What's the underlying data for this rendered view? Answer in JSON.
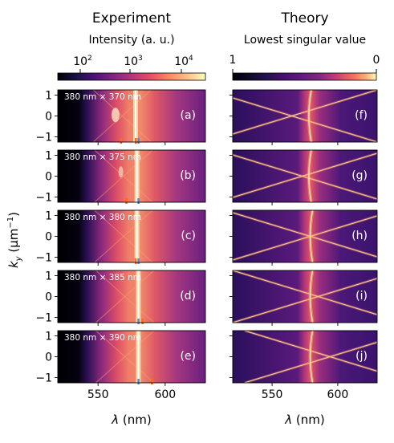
{
  "columns": [
    {
      "title": "Experiment",
      "colorbar_label": "Intensity (a. u.)",
      "colorbar_ticks": [
        "10",
        "10",
        "10"
      ],
      "colorbar_tick_exponents": [
        "2",
        "3",
        "4"
      ],
      "colorbar_colormap": "magma",
      "colorbar_scale": "log"
    },
    {
      "title": "Theory",
      "colorbar_label": "Lowest singular value",
      "colorbar_ticks": [
        "1",
        "0"
      ],
      "colorbar_colormap": "magma-reversed",
      "colorbar_scale": "linear"
    }
  ],
  "y_axis_label": {
    "symbol": "k",
    "subscript": "y",
    "unit_open": " (μm",
    "unit_exponent": "−1",
    "unit_close": ")"
  },
  "x_axis_label": {
    "symbol": "λ",
    "unit": " (nm)"
  },
  "y_ticks": [
    "1",
    "0",
    "−1"
  ],
  "x_ticks": [
    "550",
    "600"
  ],
  "experiment_panels": [
    {
      "letter": "(a)",
      "size_label": "380 nm × 370 nm"
    },
    {
      "letter": "(b)",
      "size_label": "380 nm × 375 nm"
    },
    {
      "letter": "(c)",
      "size_label": "380 nm × 380 nm"
    },
    {
      "letter": "(d)",
      "size_label": "380 nm × 385 nm"
    },
    {
      "letter": "(e)",
      "size_label": "380 nm × 390 nm"
    }
  ],
  "theory_panels": [
    {
      "letter": "(f)"
    },
    {
      "letter": "(g)"
    },
    {
      "letter": "(h)"
    },
    {
      "letter": "(i)"
    },
    {
      "letter": "(j)"
    }
  ],
  "chart_data": {
    "type": "heatmap",
    "x_range_nm": [
      520,
      630
    ],
    "y_range_inv_um": [
      -1.25,
      1.25
    ],
    "x_ticks_nm": [
      550,
      600
    ],
    "y_ticks_inv_um": [
      1,
      0,
      -1
    ],
    "colors": {
      "background": "#2a0f5c",
      "dark": "#050314",
      "bright_line": "#fcecc0",
      "mode_line": "#f7a76d",
      "marker_orange": "#ff6a1a",
      "marker_blue": "#3f8fe0"
    },
    "panels": [
      {
        "letter": "(a)",
        "period_nm": 370,
        "bright_line_nm": 578
      },
      {
        "letter": "(b)",
        "period_nm": 375,
        "bright_line_nm": 579
      },
      {
        "letter": "(c)",
        "period_nm": 380,
        "bright_line_nm": 579
      },
      {
        "letter": "(d)",
        "period_nm": 385,
        "bright_line_nm": 580
      },
      {
        "letter": "(e)",
        "period_nm": 390,
        "bright_line_nm": 580
      },
      {
        "letter": "(f)",
        "period_nm": 370,
        "crossing_nm": 565,
        "bright_line_nm": 578
      },
      {
        "letter": "(g)",
        "period_nm": 375,
        "crossing_nm": 573,
        "bright_line_nm": 578
      },
      {
        "letter": "(h)",
        "period_nm": 380,
        "crossing_nm": 579,
        "bright_line_nm": 579
      },
      {
        "letter": "(i)",
        "period_nm": 385,
        "crossing_nm": 585,
        "bright_line_nm": 579
      },
      {
        "letter": "(j)",
        "period_nm": 390,
        "crossing_nm": 594,
        "bright_line_nm": 579
      }
    ],
    "marker_positions_nm": [
      {
        "panel": "(a)",
        "orange": [
          567,
          578
        ],
        "blue": [
          580
        ]
      },
      {
        "panel": "(b)",
        "orange": [
          571
        ],
        "blue": [
          580
        ]
      },
      {
        "panel": "(c)",
        "orange": [
          578
        ],
        "blue": [
          580
        ]
      },
      {
        "panel": "(d)",
        "orange": [
          583
        ],
        "blue": [
          580
        ]
      },
      {
        "panel": "(e)",
        "orange": [
          590
        ],
        "blue": [
          580
        ]
      }
    ]
  }
}
